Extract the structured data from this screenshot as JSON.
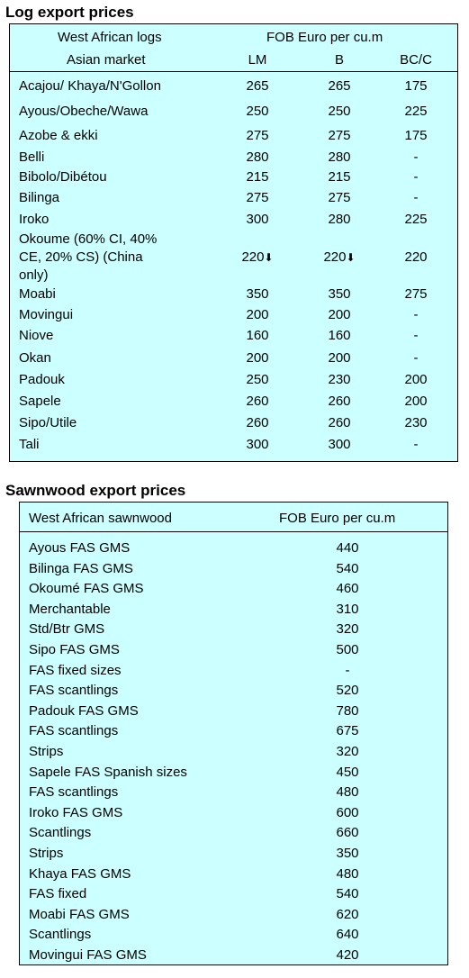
{
  "log": {
    "title": "Log export prices",
    "header": {
      "col1_line1": "West African logs",
      "col1_line2": "Asian market",
      "price_header": "FOB Euro per cu.m",
      "lm": "LM",
      "b": "B",
      "bcc": "BC/C"
    },
    "rows": [
      {
        "name": "Acajou/ Khaya/N'Gollon",
        "lm": "265",
        "b": "265",
        "bcc": "175"
      },
      {
        "name": "Ayous/Obeche/Wawa",
        "lm": "250",
        "b": "250",
        "bcc": "225"
      },
      {
        "name": "Azobe & ekki",
        "lm": "275",
        "b": "275",
        "bcc": "175"
      },
      {
        "name": "Belli",
        "lm": "280",
        "b": "280",
        "bcc": "-"
      },
      {
        "name": "Bibolo/Dibétou",
        "lm": "215",
        "b": "215",
        "bcc": "-"
      },
      {
        "name": "Bilinga",
        "lm": "275",
        "b": "275",
        "bcc": "-"
      },
      {
        "name": "Iroko",
        "lm": "300",
        "b": "280",
        "bcc": "225"
      },
      {
        "name_lines": [
          "Okoume (60% CI, 40%",
          "CE, 20% CS) (China",
          "only)"
        ],
        "lm": "220",
        "b": "220",
        "bcc": "220",
        "arrow": "down-arrow-icon"
      },
      {
        "name": "Moabi",
        "lm": "350",
        "b": "350",
        "bcc": "275"
      },
      {
        "name": "Movingui",
        "lm": "200",
        "b": "200",
        "bcc": "-"
      },
      {
        "name": "Niove",
        "lm": "160",
        "b": "160",
        "bcc": "-"
      },
      {
        "name": "Okan",
        "lm": "200",
        "b": "200",
        "bcc": "-"
      },
      {
        "name": "Padouk",
        "lm": "250",
        "b": "230",
        "bcc": "200"
      },
      {
        "name": "Sapele",
        "lm": "260",
        "b": "260",
        "bcc": "200"
      },
      {
        "name": "Sipo/Utile",
        "lm": "260",
        "b": "260",
        "bcc": "230"
      },
      {
        "name": "Tali",
        "lm": "300",
        "b": "300",
        "bcc": "-"
      }
    ]
  },
  "sawn": {
    "title": "Sawnwood export prices",
    "header": {
      "col1": "West African sawnwood",
      "price_header": "FOB Euro per cu.m"
    },
    "rows": [
      {
        "name": "Ayous FAS GMS",
        "price": "440"
      },
      {
        "name": "Bilinga FAS GMS",
        "price": "540"
      },
      {
        "name": "Okoumé FAS GMS",
        "price": "460"
      },
      {
        "name": "Merchantable",
        "price": "310"
      },
      {
        "name": "Std/Btr GMS",
        "price": "320"
      },
      {
        "name": "Sipo FAS GMS",
        "price": "500"
      },
      {
        "name": "FAS fixed sizes",
        "price": "-"
      },
      {
        "name": "FAS scantlings",
        "price": "520"
      },
      {
        "name": "Padouk FAS GMS",
        "price": "780"
      },
      {
        "name": "FAS scantlings",
        "price": "675"
      },
      {
        "name": "Strips",
        "price": "320"
      },
      {
        "name": "Sapele FAS Spanish sizes",
        "price": "450"
      },
      {
        "name": "FAS scantlings",
        "price": "480"
      },
      {
        "name": "Iroko FAS GMS",
        "price": "600"
      },
      {
        "name": "Scantlings",
        "price": "660"
      },
      {
        "name": "Strips",
        "price": "350"
      },
      {
        "name": "Khaya FAS GMS",
        "price": "480"
      },
      {
        "name": "FAS fixed",
        "price": "540"
      },
      {
        "name": "Moabi FAS GMS",
        "price": "620"
      },
      {
        "name": "Scantlings",
        "price": "640"
      },
      {
        "name": "Movingui FAS GMS",
        "price": "420"
      }
    ]
  }
}
